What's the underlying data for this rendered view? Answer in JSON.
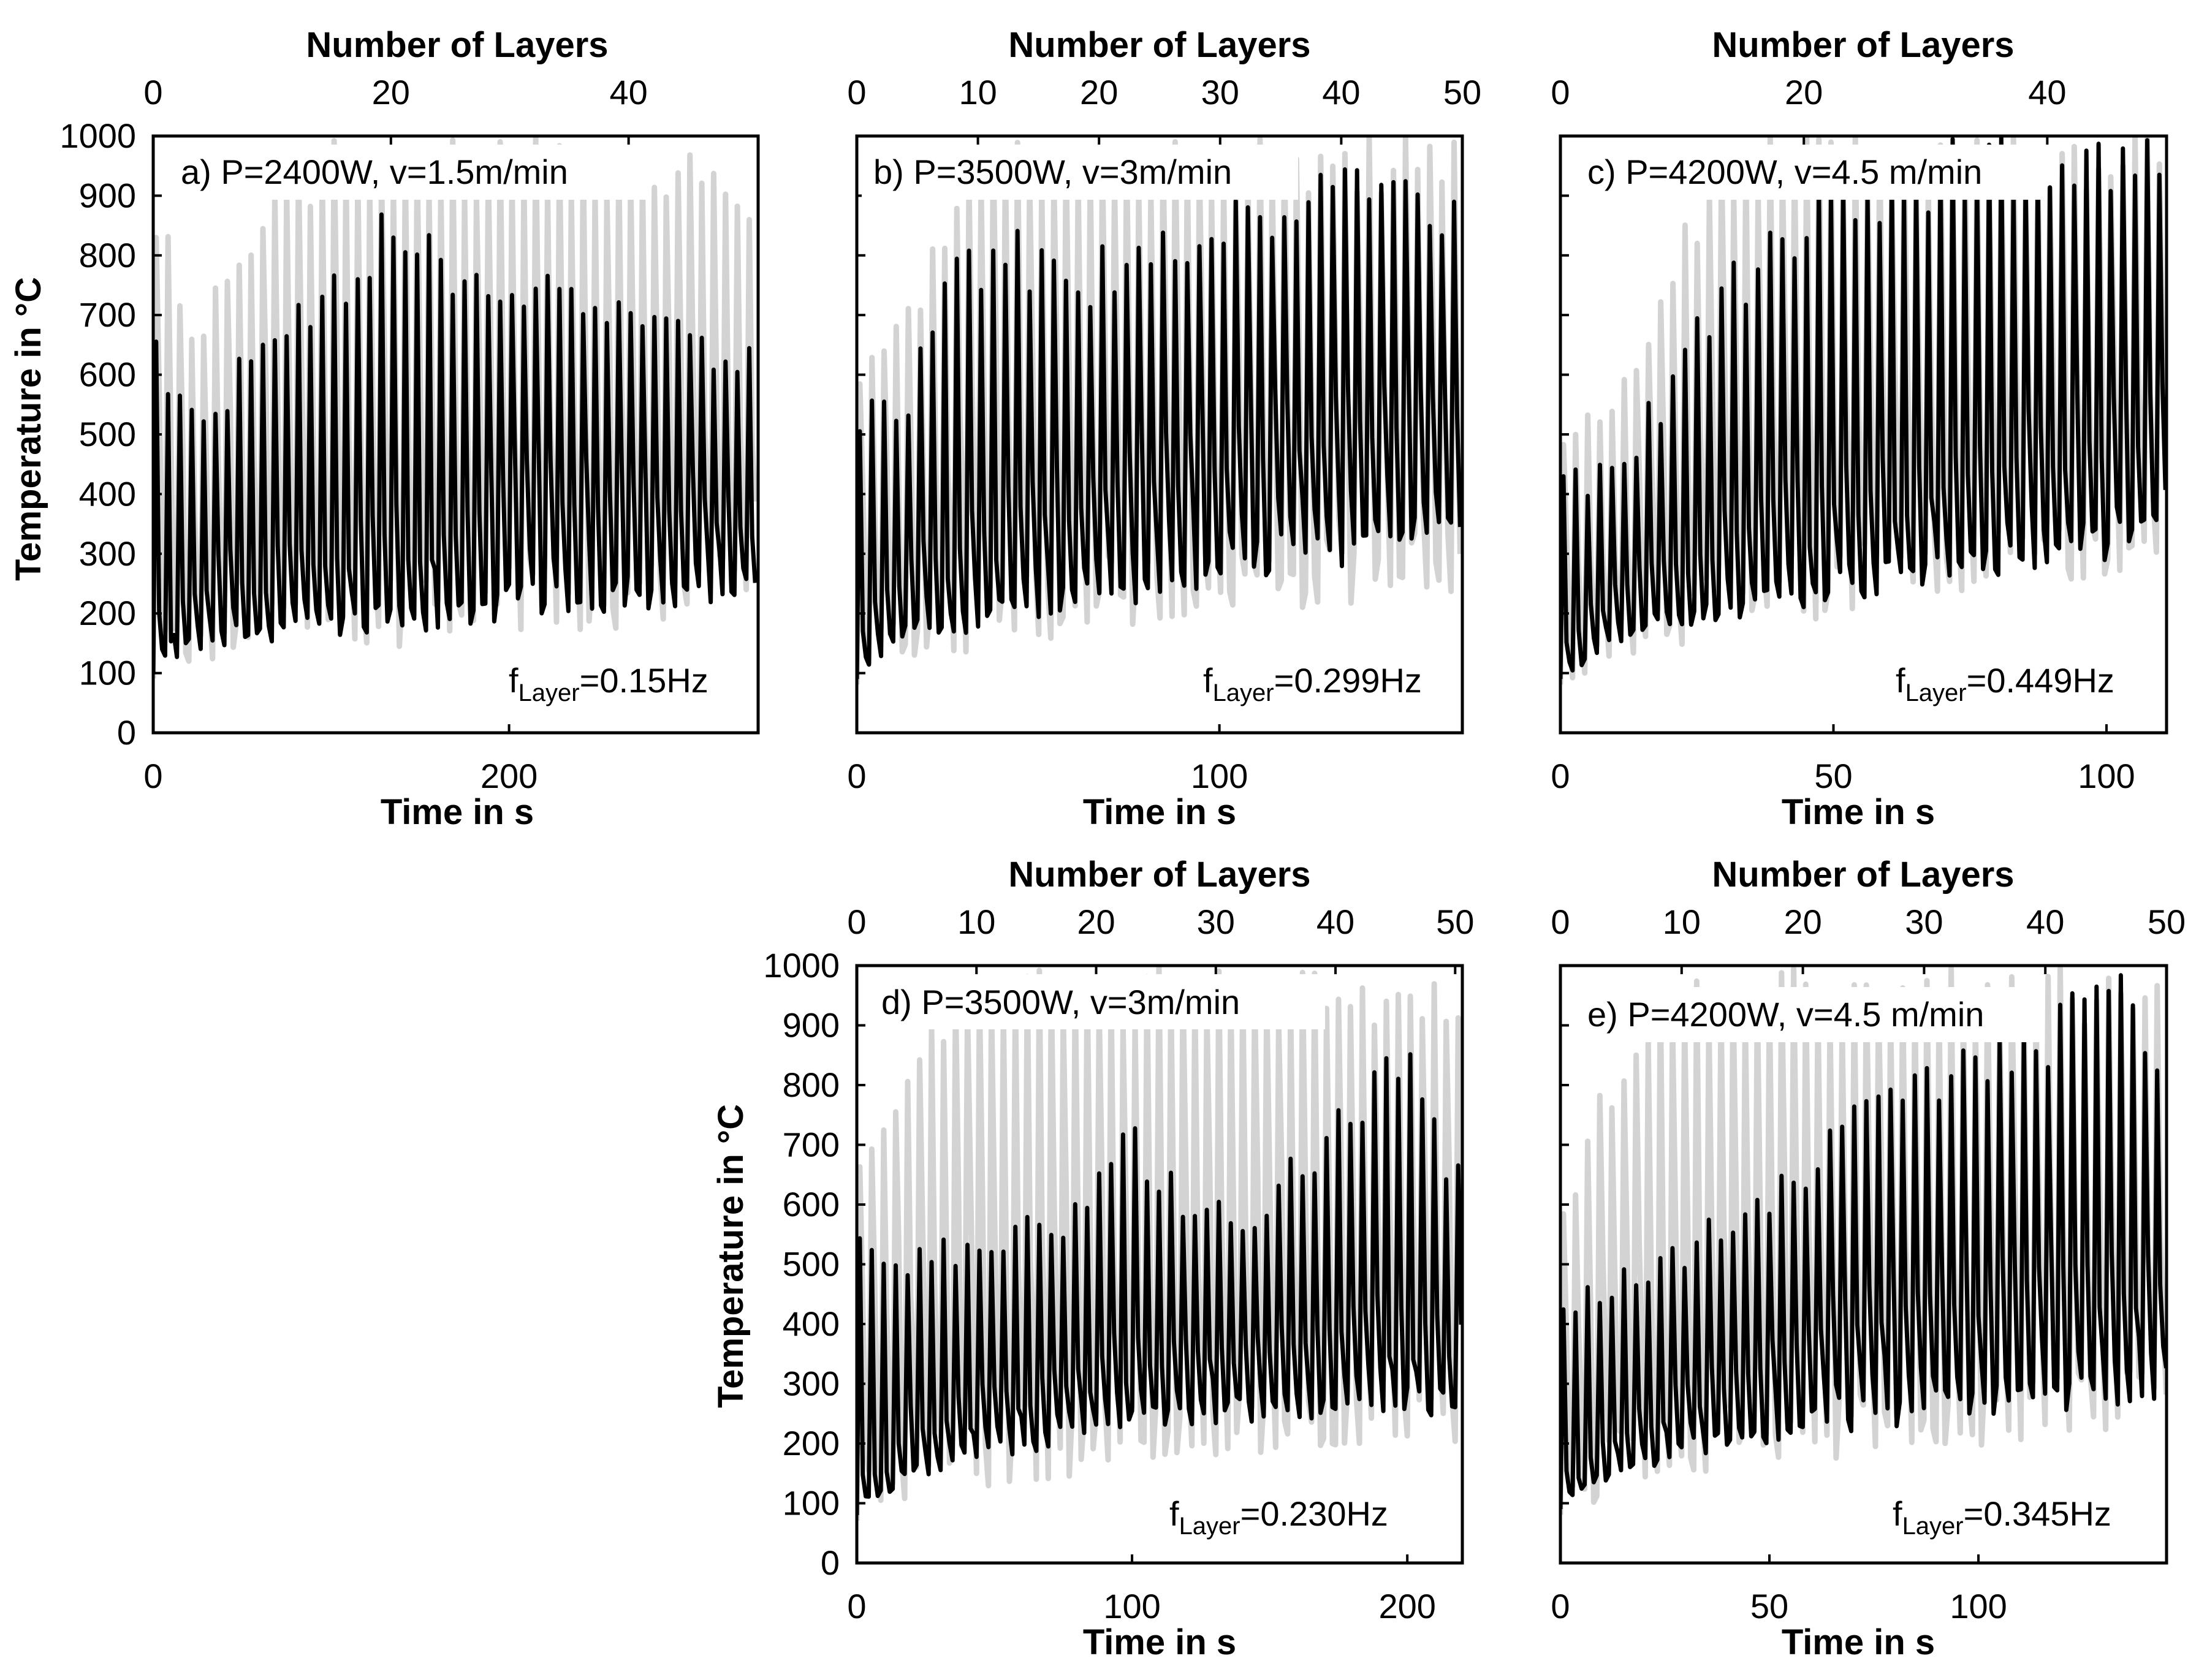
{
  "figure": {
    "panels": [
      {
        "label": "a) P=2400W, v=1.5m/min",
        "freq_main": "f",
        "freq_sub": "Layer",
        "freq_value": "=0.15Hz",
        "ylabel": "Temperature in °C",
        "xlabel": "Time in s",
        "top_xlabel": "Number of Layers"
      },
      {
        "label": "b) P=3500W, v=3m/min",
        "freq_main": "f",
        "freq_sub": "Layer",
        "freq_value": "=0.299Hz",
        "ylabel": "",
        "xlabel": "Time in s",
        "top_xlabel": "Number of Layers"
      },
      {
        "label": "c) P=4200W, v=4.5 m/min",
        "freq_main": "f",
        "freq_sub": "Layer",
        "freq_value": "=0.449Hz",
        "ylabel": "",
        "xlabel": "Time in s",
        "top_xlabel": "Number of Layers"
      },
      {
        "label": "d) P=3500W, v=3m/min",
        "freq_main": "f",
        "freq_sub": "Layer",
        "freq_value": "=0.230Hz",
        "ylabel": "Temperature in °C",
        "xlabel": "Time in s",
        "top_xlabel": "Number of Layers"
      },
      {
        "label": "e) P=4200W, v=4.5 m/min",
        "freq_main": "f",
        "freq_sub": "Layer",
        "freq_value": "=0.345Hz",
        "ylabel": "",
        "xlabel": "Time in s",
        "top_xlabel": "Number of Layers"
      }
    ]
  },
  "chart_data": [
    {
      "type": "line",
      "title": "a) P=2400W, v=1.5m/min",
      "xlabel": "Time in s",
      "ylabel": "Temperature in °C",
      "top_xlabel": "Number of Layers",
      "ylim": [
        0,
        1000
      ],
      "yticks": [
        0,
        100,
        200,
        300,
        400,
        500,
        600,
        700,
        800,
        900,
        1000
      ],
      "xlim": [
        0,
        340
      ],
      "xticks": [
        0,
        200
      ],
      "top_xlim": [
        0,
        50.9
      ],
      "top_xticks": [
        0,
        20,
        40
      ],
      "grid": false,
      "annotation": "fLayer=0.15Hz",
      "layer_frequency_hz": 0.15,
      "series": [
        {
          "color": "#000000",
          "x": [
            0,
            25,
            50,
            75,
            100,
            125,
            150,
            175,
            200,
            225,
            250,
            275,
            300,
            325
          ],
          "min": [
            100,
            135,
            145,
            155,
            160,
            165,
            170,
            175,
            185,
            195,
            200,
            205,
            210,
            215
          ],
          "mean": [
            180,
            240,
            270,
            300,
            320,
            330,
            330,
            380,
            400,
            420,
            430,
            440,
            400,
            360
          ],
          "max": [
            740,
            570,
            650,
            740,
            830,
            880,
            880,
            830,
            790,
            800,
            750,
            730,
            690,
            660
          ]
        },
        {
          "color": "#d3d3d3",
          "x": [
            0,
            25,
            50,
            75,
            100,
            125,
            150,
            175,
            200,
            225,
            250,
            275,
            300,
            325
          ],
          "min": [
            90,
            115,
            120,
            125,
            130,
            135,
            140,
            145,
            150,
            155,
            160,
            165,
            170,
            175
          ],
          "max": [
            950,
            700,
            880,
            960,
            1000,
            1000,
            1000,
            1000,
            1000,
            1000,
            1000,
            1000,
            1000,
            950
          ]
        }
      ]
    },
    {
      "type": "line",
      "title": "b) P=3500W, v=3m/min",
      "xlabel": "Time in s",
      "ylabel": "",
      "top_xlabel": "Number of Layers",
      "ylim": [
        0,
        1000
      ],
      "yticks": [
        0,
        100,
        200,
        300,
        400,
        500,
        600,
        700,
        800,
        900,
        1000
      ],
      "xlim": [
        0,
        167
      ],
      "xticks": [
        0,
        100
      ],
      "top_xlim": [
        0,
        50
      ],
      "top_xticks": [
        0,
        10,
        20,
        30,
        40,
        50
      ],
      "grid": false,
      "annotation": "fLayer=0.299Hz",
      "layer_frequency_hz": 0.299,
      "series": [
        {
          "color": "#000000",
          "x": [
            0,
            15,
            30,
            45,
            60,
            75,
            90,
            105,
            120,
            135,
            150,
            167
          ],
          "min": [
            90,
            150,
            165,
            180,
            200,
            215,
            230,
            245,
            260,
            280,
            300,
            320
          ],
          "mean": [
            150,
            280,
            340,
            370,
            390,
            430,
            470,
            500,
            530,
            550,
            560,
            520
          ],
          "max": [
            540,
            620,
            860,
            850,
            800,
            830,
            880,
            900,
            950,
            950,
            930,
            900
          ]
        },
        {
          "color": "#d3d3d3",
          "x": [
            0,
            15,
            30,
            45,
            60,
            75,
            90,
            105,
            120,
            135,
            150,
            167
          ],
          "min": [
            80,
            120,
            135,
            150,
            165,
            175,
            185,
            195,
            205,
            215,
            225,
            235
          ],
          "max": [
            640,
            720,
            1000,
            1000,
            1000,
            1000,
            1000,
            1000,
            1000,
            1000,
            1000,
            1000
          ]
        }
      ]
    },
    {
      "type": "line",
      "title": "c) P=4200W, v=4.5 m/min",
      "xlabel": "Time in s",
      "ylabel": "",
      "top_xlabel": "Number of Layers",
      "ylim": [
        0,
        1000
      ],
      "yticks": [
        0,
        100,
        200,
        300,
        400,
        500,
        600,
        700,
        800,
        900,
        1000
      ],
      "xlim": [
        0,
        111
      ],
      "xticks": [
        0,
        50,
        100
      ],
      "top_xlim": [
        0,
        49.8
      ],
      "top_xticks": [
        0,
        20,
        40
      ],
      "grid": false,
      "annotation": "fLayer=0.449Hz",
      "layer_frequency_hz": 0.449,
      "series": [
        {
          "color": "#000000",
          "x": [
            0,
            10,
            20,
            30,
            40,
            50,
            60,
            70,
            80,
            90,
            100,
            111
          ],
          "min": [
            90,
            140,
            165,
            185,
            200,
            215,
            230,
            245,
            260,
            275,
            290,
            305
          ],
          "mean": [
            140,
            230,
            290,
            330,
            360,
            390,
            420,
            440,
            470,
            500,
            520,
            540
          ],
          "max": [
            450,
            460,
            620,
            780,
            880,
            950,
            1000,
            1000,
            1000,
            1000,
            1000,
            1000
          ]
        },
        {
          "color": "#d3d3d3",
          "x": [
            0,
            10,
            20,
            30,
            40,
            50,
            60,
            70,
            80,
            90,
            100,
            111
          ],
          "min": [
            80,
            120,
            140,
            160,
            175,
            190,
            205,
            220,
            235,
            250,
            265,
            280
          ],
          "max": [
            520,
            560,
            800,
            1000,
            1000,
            1000,
            1000,
            1000,
            1000,
            1000,
            1000,
            1000
          ]
        }
      ]
    },
    {
      "type": "line",
      "title": "d) P=3500W, v=3m/min",
      "xlabel": "Time in s",
      "ylabel": "Temperature in °C",
      "top_xlabel": "Number of Layers",
      "ylim": [
        0,
        1000
      ],
      "yticks": [
        0,
        100,
        200,
        300,
        400,
        500,
        600,
        700,
        800,
        900,
        1000
      ],
      "xlim": [
        0,
        220
      ],
      "xticks": [
        0,
        100,
        200
      ],
      "top_xlim": [
        0,
        50.6
      ],
      "top_xticks": [
        0,
        10,
        20,
        30,
        40,
        50
      ],
      "grid": false,
      "annotation": "fLayer=0.230Hz",
      "layer_frequency_hz": 0.23,
      "series": [
        {
          "color": "#000000",
          "x": [
            0,
            20,
            40,
            60,
            80,
            100,
            120,
            140,
            160,
            180,
            200,
            220
          ],
          "min": [
            80,
            140,
            160,
            180,
            200,
            215,
            225,
            235,
            240,
            245,
            250,
            240
          ],
          "mean": [
            140,
            230,
            260,
            290,
            320,
            350,
            380,
            370,
            360,
            390,
            400,
            380
          ],
          "max": [
            560,
            520,
            560,
            600,
            620,
            760,
            620,
            600,
            700,
            820,
            880,
            660
          ]
        },
        {
          "color": "#d3d3d3",
          "x": [
            0,
            20,
            40,
            60,
            80,
            100,
            120,
            140,
            160,
            180,
            200,
            220
          ],
          "min": [
            70,
            110,
            125,
            135,
            145,
            155,
            165,
            175,
            185,
            190,
            195,
            200
          ],
          "max": [
            700,
            880,
            1000,
            1000,
            1000,
            1000,
            1000,
            1000,
            1000,
            1000,
            1000,
            1000
          ]
        }
      ]
    },
    {
      "type": "line",
      "title": "e) P=4200W, v=4.5 m/min",
      "xlabel": "Time in s",
      "ylabel": "",
      "top_xlabel": "Number of Layers",
      "ylim": [
        0,
        1000
      ],
      "yticks": [
        0,
        100,
        200,
        300,
        400,
        500,
        600,
        700,
        800,
        900,
        1000
      ],
      "xlim": [
        0,
        145
      ],
      "xticks": [
        0,
        50,
        100
      ],
      "top_xlim": [
        0,
        50
      ],
      "top_xticks": [
        0,
        10,
        20,
        30,
        40,
        50
      ],
      "grid": false,
      "annotation": "fLayer=0.345Hz",
      "layer_frequency_hz": 0.345,
      "series": [
        {
          "color": "#000000",
          "x": [
            0,
            15,
            30,
            45,
            60,
            75,
            90,
            105,
            120,
            135,
            145
          ],
          "min": [
            90,
            150,
            175,
            195,
            210,
            220,
            230,
            240,
            250,
            260,
            265
          ],
          "mean": [
            150,
            240,
            290,
            300,
            420,
            440,
            460,
            470,
            480,
            500,
            480
          ],
          "max": [
            420,
            520,
            560,
            600,
            700,
            800,
            860,
            900,
            950,
            1000,
            820
          ]
        },
        {
          "color": "#d3d3d3",
          "x": [
            0,
            15,
            30,
            45,
            60,
            75,
            90,
            105,
            120,
            135,
            145
          ],
          "min": [
            80,
            120,
            140,
            155,
            165,
            175,
            185,
            195,
            205,
            215,
            220
          ],
          "max": [
            600,
            900,
            1000,
            1000,
            1000,
            1000,
            1000,
            1000,
            1000,
            1000,
            1000
          ]
        }
      ]
    }
  ]
}
